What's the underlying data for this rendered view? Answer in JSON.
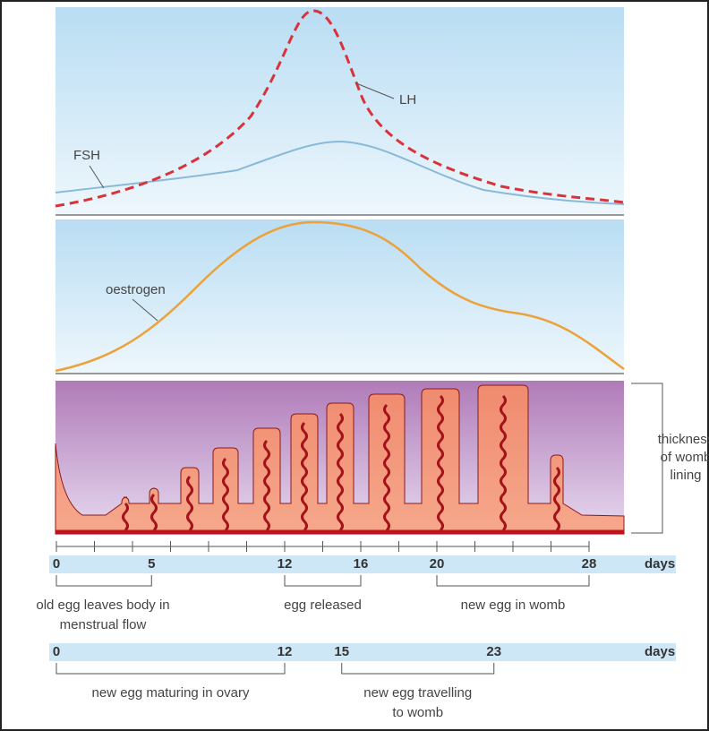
{
  "hormones": {
    "lh_label": "LH",
    "fsh_label": "FSH"
  },
  "oestrogen": {
    "label": "oestrogen"
  },
  "womb": {
    "label": [
      "thickness",
      "of womb",
      "lining"
    ]
  },
  "timeline_1": {
    "ticks": [
      0,
      5,
      12,
      16,
      20,
      28
    ],
    "unit": "days",
    "spans": [
      {
        "label": [
          "old egg leaves body in",
          "menstrual flow"
        ]
      },
      {
        "label": [
          "egg released"
        ]
      },
      {
        "label": [
          "new egg in womb"
        ]
      }
    ]
  },
  "timeline_2": {
    "ticks": [
      0,
      12,
      15,
      23
    ],
    "unit": "days",
    "spans": [
      {
        "label": [
          "new egg maturing in ovary"
        ]
      },
      {
        "label": [
          "new egg travelling",
          "to womb"
        ]
      }
    ]
  }
}
